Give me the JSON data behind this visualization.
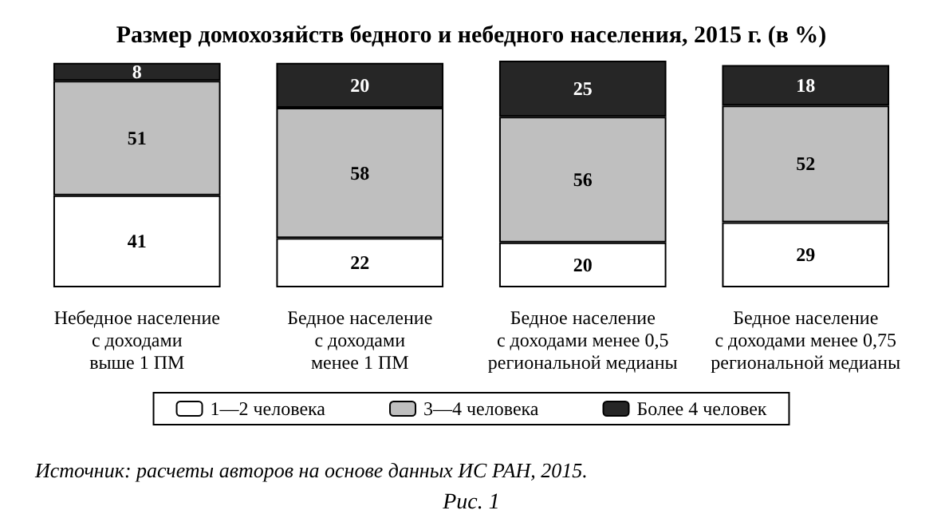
{
  "chart_data": {
    "type": "bar",
    "stacked": true,
    "data_labels": true,
    "legend": "bottom",
    "title": "Размер домохозяйств бедного и небедного населения, 2015 г. (в %)",
    "categories": [
      "Небедное население\nс доходами\nвыше 1 ПМ",
      "Бедное население\nс доходами\nменее 1 ПМ",
      "Бедное население\nс доходами менее 0,5\nрегиональной медианы",
      "Бедное население\nс доходами менее 0,75\nрегиональной медианы"
    ],
    "series": [
      {
        "name": "1—2 человека",
        "color": "#ffffff",
        "values": [
          41,
          22,
          20,
          29
        ]
      },
      {
        "name": "3—4 человека",
        "color": "#bfbfbf",
        "values": [
          51,
          58,
          56,
          52
        ]
      },
      {
        "name": "Более 4 человек",
        "color": "#262626",
        "values": [
          8,
          20,
          25,
          18
        ]
      }
    ],
    "annotations": [
      "Источник: расчеты авторов на основе данных ИС РАН, 2015.",
      "Рис. 1"
    ]
  }
}
